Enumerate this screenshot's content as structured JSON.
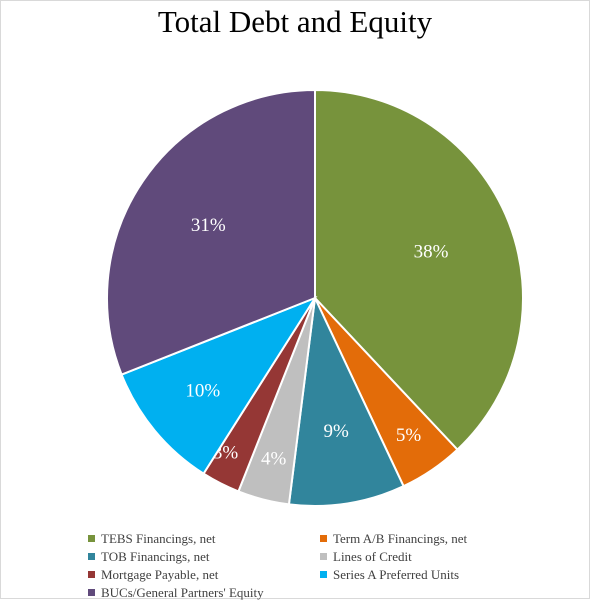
{
  "chart_data": {
    "type": "pie",
    "title": "Total Debt and Equity",
    "categories": [
      "TEBS Financings, net",
      "Term A/B Financings, net",
      "TOB Financings, net",
      "Lines of Credit",
      "Mortgage Payable, net",
      "Series A Preferred Units",
      "BUCs/General Partners' Equity"
    ],
    "values": [
      38,
      5,
      9,
      4,
      3,
      10,
      31
    ],
    "labels": [
      "38%",
      "5%",
      "9%",
      "4%",
      "3%",
      "10%",
      "31%"
    ],
    "colors": [
      "#77933c",
      "#e36c09",
      "#31859c",
      "#bfbfbf",
      "#953735",
      "#00b0f0",
      "#604a7b"
    ],
    "legend_position": "bottom"
  }
}
